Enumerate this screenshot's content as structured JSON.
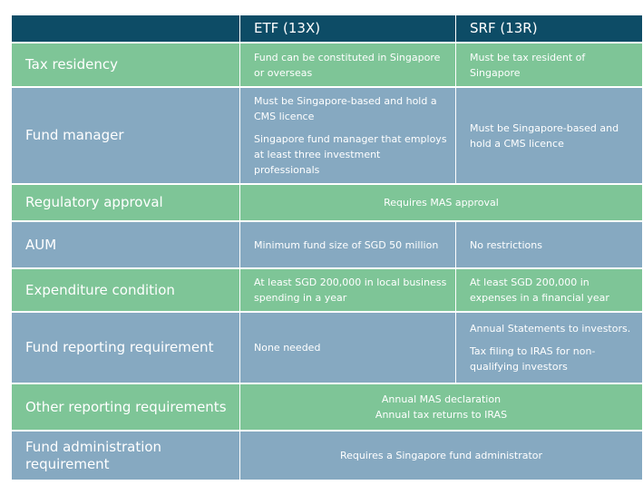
{
  "header": {
    "col1": "",
    "col2": "ETF (13X)",
    "col3": "SRF (13R)"
  },
  "rows": [
    {
      "label": "Tax residency",
      "etf": [
        "Fund can be constituted in Singapore or overseas"
      ],
      "srf": [
        "Must be tax resident of Singapore"
      ]
    },
    {
      "label": "Fund manager",
      "etf": [
        "Must be Singapore-based and hold a CMS licence",
        "Singapore fund manager that employs at least three investment professionals"
      ],
      "srf": [
        "Must be Singapore-based and hold a CMS licence"
      ]
    },
    {
      "label": "Regulatory approval",
      "both": [
        "Requires MAS approval"
      ]
    },
    {
      "label": "AUM",
      "etf": [
        "Minimum fund size of SGD 50 million"
      ],
      "srf": [
        "No restrictions"
      ]
    },
    {
      "label": "Expenditure condition",
      "etf": [
        "At least SGD 200,000 in local business spending in a year"
      ],
      "srf": [
        "At least SGD 200,000 in expenses in a financial year"
      ]
    },
    {
      "label": "Fund reporting requirement",
      "etf": [
        "None needed"
      ],
      "srf": [
        "Annual Statements to investors.",
        "Tax filing to IRAS for non-qualifying investors"
      ]
    },
    {
      "label": "Other reporting requirements",
      "both": [
        "Annual MAS declaration",
        "Annual tax returns to IRAS"
      ]
    },
    {
      "label": "Fund administration requirement",
      "both": [
        "Requires a Singapore fund administrator"
      ]
    }
  ],
  "colors": {
    "header": "#0d4c66",
    "green": "#7ec597",
    "blue": "#86a9c1"
  }
}
